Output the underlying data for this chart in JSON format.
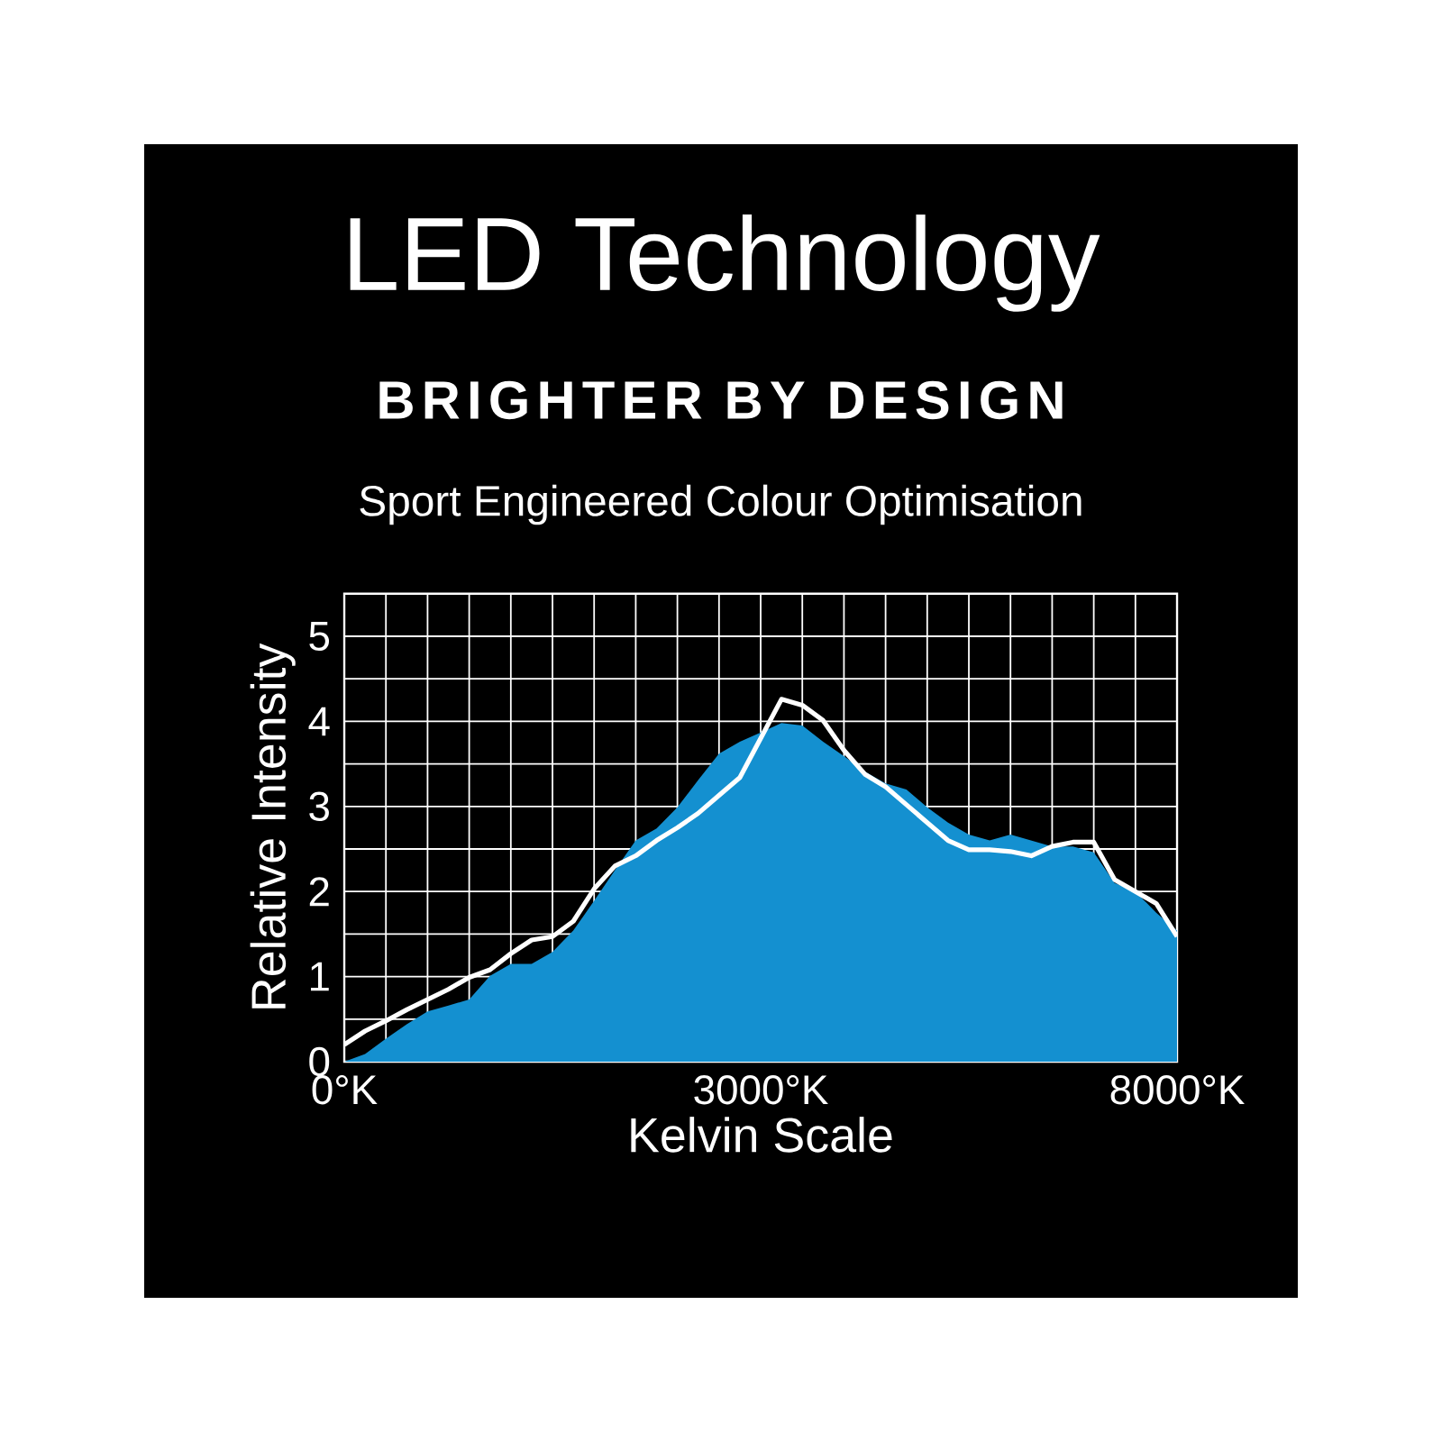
{
  "chart_data": {
    "type": "area",
    "title": "LED Technology",
    "subtitle": "BRIGHTER BY DESIGN",
    "annotations": [
      "Sport Engineered Colour Optimisation"
    ],
    "xlabel": "Kelvin Scale",
    "ylabel": "Relative Intensity",
    "categories": [
      "0°K",
      null,
      null,
      null,
      null,
      null,
      null,
      null,
      null,
      null,
      null,
      null,
      null,
      null,
      null,
      null,
      null,
      null,
      null,
      null,
      "3000°K",
      null,
      null,
      null,
      null,
      null,
      null,
      null,
      null,
      null,
      null,
      null,
      null,
      null,
      null,
      null,
      null,
      null,
      null,
      null,
      "8000°K"
    ],
    "ylim": [
      0,
      5.5
    ],
    "yticks": [
      0,
      {
        "value": 0.5,
        "label": null
      },
      1,
      {
        "value": 1.5,
        "label": null
      },
      2,
      {
        "value": 2.5,
        "label": null
      },
      3,
      {
        "value": 3.5,
        "label": null
      },
      4,
      {
        "value": 4.5,
        "label": null
      },
      5
    ],
    "grid": true,
    "series": [
      {
        "color": "#1490d0",
        "values": [
          0,
          0.09,
          0.27,
          0.44,
          0.59,
          0.66,
          0.73,
          1.01,
          1.15,
          1.15,
          1.29,
          1.54,
          1.89,
          2.25,
          2.6,
          2.74,
          2.99,
          3.31,
          3.62,
          3.76,
          3.87,
          3.98,
          3.95,
          3.76,
          3.59,
          3.41,
          3.27,
          3.2,
          2.99,
          2.81,
          2.67,
          2.6,
          2.67,
          2.6,
          2.53,
          2.53,
          2.46,
          2.1,
          2.0,
          1.75,
          1.54
        ]
      },
      {
        "type": "line",
        "color": "#ffffff",
        "values": [
          0.2,
          0.36,
          0.48,
          0.61,
          0.73,
          0.85,
          0.99,
          1.08,
          1.27,
          1.43,
          1.47,
          1.65,
          2.03,
          2.3,
          2.42,
          2.6,
          2.75,
          2.92,
          3.13,
          3.34,
          3.8,
          4.26,
          4.19,
          4.01,
          3.66,
          3.38,
          3.23,
          3.02,
          2.81,
          2.6,
          2.49,
          2.49,
          2.47,
          2.42,
          2.53,
          2.58,
          2.58,
          2.14,
          2.0,
          1.86,
          1.47
        ]
      }
    ]
  }
}
